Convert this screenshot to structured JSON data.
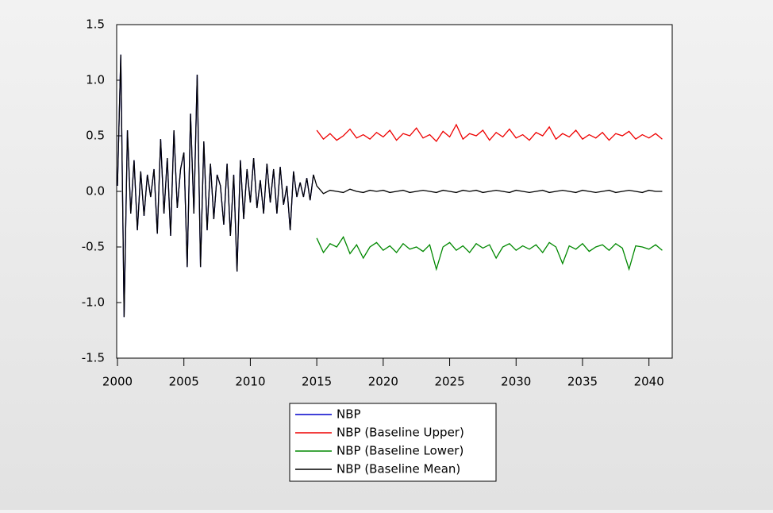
{
  "chart_data": {
    "type": "line",
    "xlim": [
      2000,
      2041.75
    ],
    "xticks": [
      2000,
      2005,
      2010,
      2015,
      2020,
      2025,
      2030,
      2035,
      2040
    ],
    "ylim": [
      -1.5,
      1.5
    ],
    "yticks": [
      1.5,
      {
        "value": 1,
        "label": "1.0"
      },
      0.5,
      {
        "value": 0,
        "label": "0.0"
      },
      -0.5,
      {
        "value": -1,
        "label": "-1.0"
      },
      -1.5
    ],
    "series": [
      {
        "name": "NBP",
        "color": "#0000cc",
        "x": [
          2000,
          2000.25,
          2000.5,
          2000.75,
          2001,
          2001.25,
          2001.5,
          2001.75,
          2002,
          2002.25,
          2002.5,
          2002.75,
          2003,
          2003.25,
          2003.5,
          2003.75,
          2004,
          2004.25,
          2004.5,
          2004.75,
          2005,
          2005.25,
          2005.5,
          2005.75,
          2006,
          2006.25,
          2006.5,
          2006.75,
          2007,
          2007.25,
          2007.5,
          2007.75,
          2008,
          2008.25,
          2008.5,
          2008.75,
          2009,
          2009.25,
          2009.5,
          2009.75,
          2010,
          2010.25,
          2010.5,
          2010.75,
          2011,
          2011.25,
          2011.5,
          2011.75,
          2012,
          2012.25,
          2012.5,
          2012.75,
          2013,
          2013.25,
          2013.5,
          2013.75,
          2014,
          2014.25,
          2014.5,
          2014.75
        ],
        "values": [
          0.05,
          1.23,
          -1.13,
          0.55,
          -0.2,
          0.28,
          -0.35,
          0.18,
          -0.22,
          0.15,
          -0.05,
          0.2,
          -0.38,
          0.47,
          -0.2,
          0.3,
          -0.4,
          0.55,
          -0.15,
          0.2,
          0.35,
          -0.68,
          0.7,
          -0.2,
          1.05,
          -0.68,
          0.45,
          -0.35,
          0.25,
          -0.25,
          0.15,
          0.05,
          -0.3,
          0.25,
          -0.4,
          0.15,
          -0.72,
          0.28,
          -0.25,
          0.2,
          -0.1,
          0.3,
          -0.15,
          0.1,
          -0.2,
          0.25,
          -0.1,
          0.2,
          -0.2,
          0.22,
          -0.12,
          0.05,
          -0.35,
          0.18,
          -0.05,
          0.08,
          -0.05,
          0.12,
          -0.08,
          0.15
        ]
      },
      {
        "name": "NBP (Baseline Upper)",
        "color": "#ee0000",
        "x": [
          2015,
          2015.5,
          2016,
          2016.5,
          2017,
          2017.5,
          2018,
          2018.5,
          2019,
          2019.5,
          2020,
          2020.5,
          2021,
          2021.5,
          2022,
          2022.5,
          2023,
          2023.5,
          2024,
          2024.5,
          2025,
          2025.5,
          2026,
          2026.5,
          2027,
          2027.5,
          2028,
          2028.5,
          2029,
          2029.5,
          2030,
          2030.5,
          2031,
          2031.5,
          2032,
          2032.5,
          2033,
          2033.5,
          2034,
          2034.5,
          2035,
          2035.5,
          2036,
          2036.5,
          2037,
          2037.5,
          2038,
          2038.5,
          2039,
          2039.5,
          2040,
          2040.5,
          2041
        ],
        "values": [
          0.55,
          0.47,
          0.52,
          0.46,
          0.5,
          0.56,
          0.48,
          0.51,
          0.47,
          0.53,
          0.49,
          0.55,
          0.46,
          0.52,
          0.5,
          0.57,
          0.48,
          0.51,
          0.45,
          0.54,
          0.49,
          0.6,
          0.47,
          0.52,
          0.5,
          0.55,
          0.46,
          0.53,
          0.49,
          0.56,
          0.48,
          0.51,
          0.46,
          0.53,
          0.5,
          0.58,
          0.47,
          0.52,
          0.49,
          0.55,
          0.47,
          0.51,
          0.48,
          0.53,
          0.46,
          0.52,
          0.5,
          0.54,
          0.47,
          0.51,
          0.48,
          0.52,
          0.47
        ]
      },
      {
        "name": "NBP (Baseline Lower)",
        "color": "#008800",
        "x": [
          2015,
          2015.5,
          2016,
          2016.5,
          2017,
          2017.5,
          2018,
          2018.5,
          2019,
          2019.5,
          2020,
          2020.5,
          2021,
          2021.5,
          2022,
          2022.5,
          2023,
          2023.5,
          2024,
          2024.5,
          2025,
          2025.5,
          2026,
          2026.5,
          2027,
          2027.5,
          2028,
          2028.5,
          2029,
          2029.5,
          2030,
          2030.5,
          2031,
          2031.5,
          2032,
          2032.5,
          2033,
          2033.5,
          2034,
          2034.5,
          2035,
          2035.5,
          2036,
          2036.5,
          2037,
          2037.5,
          2038,
          2038.5,
          2039,
          2039.5,
          2040,
          2040.5,
          2041
        ],
        "values": [
          -0.42,
          -0.55,
          -0.47,
          -0.5,
          -0.41,
          -0.56,
          -0.48,
          -0.6,
          -0.5,
          -0.46,
          -0.53,
          -0.49,
          -0.55,
          -0.47,
          -0.52,
          -0.5,
          -0.54,
          -0.48,
          -0.7,
          -0.5,
          -0.46,
          -0.53,
          -0.49,
          -0.55,
          -0.47,
          -0.51,
          -0.48,
          -0.6,
          -0.5,
          -0.47,
          -0.53,
          -0.49,
          -0.52,
          -0.48,
          -0.55,
          -0.46,
          -0.5,
          -0.65,
          -0.49,
          -0.52,
          -0.47,
          -0.54,
          -0.5,
          -0.48,
          -0.53,
          -0.47,
          -0.51,
          -0.7,
          -0.49,
          -0.5,
          -0.52,
          -0.48,
          -0.53
        ]
      },
      {
        "name": "NBP (Baseline Mean)",
        "color": "#000000",
        "x": [
          2000,
          2000.25,
          2000.5,
          2000.75,
          2001,
          2001.25,
          2001.5,
          2001.75,
          2002,
          2002.25,
          2002.5,
          2002.75,
          2003,
          2003.25,
          2003.5,
          2003.75,
          2004,
          2004.25,
          2004.5,
          2004.75,
          2005,
          2005.25,
          2005.5,
          2005.75,
          2006,
          2006.25,
          2006.5,
          2006.75,
          2007,
          2007.25,
          2007.5,
          2007.75,
          2008,
          2008.25,
          2008.5,
          2008.75,
          2009,
          2009.25,
          2009.5,
          2009.75,
          2010,
          2010.25,
          2010.5,
          2010.75,
          2011,
          2011.25,
          2011.5,
          2011.75,
          2012,
          2012.25,
          2012.5,
          2012.75,
          2013,
          2013.25,
          2013.5,
          2013.75,
          2014,
          2014.25,
          2014.5,
          2014.75,
          2015,
          2015.5,
          2016,
          2016.5,
          2017,
          2017.5,
          2018,
          2018.5,
          2019,
          2019.5,
          2020,
          2020.5,
          2021,
          2021.5,
          2022,
          2022.5,
          2023,
          2023.5,
          2024,
          2024.5,
          2025,
          2025.5,
          2026,
          2026.5,
          2027,
          2027.5,
          2028,
          2028.5,
          2029,
          2029.5,
          2030,
          2030.5,
          2031,
          2031.5,
          2032,
          2032.5,
          2033,
          2033.5,
          2034,
          2034.5,
          2035,
          2035.5,
          2036,
          2036.5,
          2037,
          2037.5,
          2038,
          2038.5,
          2039,
          2039.5,
          2040,
          2040.5,
          2041
        ],
        "values": [
          0.05,
          1.23,
          -1.13,
          0.55,
          -0.2,
          0.28,
          -0.35,
          0.18,
          -0.22,
          0.15,
          -0.05,
          0.2,
          -0.38,
          0.47,
          -0.2,
          0.3,
          -0.4,
          0.55,
          -0.15,
          0.2,
          0.35,
          -0.68,
          0.7,
          -0.2,
          1.05,
          -0.68,
          0.45,
          -0.35,
          0.25,
          -0.25,
          0.15,
          0.05,
          -0.3,
          0.25,
          -0.4,
          0.15,
          -0.72,
          0.28,
          -0.25,
          0.2,
          -0.1,
          0.3,
          -0.15,
          0.1,
          -0.2,
          0.25,
          -0.1,
          0.2,
          -0.2,
          0.22,
          -0.12,
          0.05,
          -0.35,
          0.18,
          -0.05,
          0.08,
          -0.05,
          0.12,
          -0.08,
          0.15,
          0.05,
          -0.02,
          0.01,
          0,
          -0.01,
          0.02,
          0,
          -0.01,
          0.01,
          0,
          0.01,
          -0.01,
          0,
          0.01,
          -0.01,
          0,
          0.01,
          0,
          -0.01,
          0.01,
          0,
          -0.01,
          0.01,
          0,
          0.01,
          -0.01,
          0,
          0.01,
          0,
          -0.01,
          0.01,
          0,
          -0.01,
          0,
          0.01,
          -0.01,
          0,
          0.01,
          0,
          -0.01,
          0.01,
          0,
          -0.01,
          0,
          0.01,
          -0.01,
          0,
          0.01,
          0,
          -0.01,
          0.01,
          0,
          0
        ]
      }
    ]
  }
}
